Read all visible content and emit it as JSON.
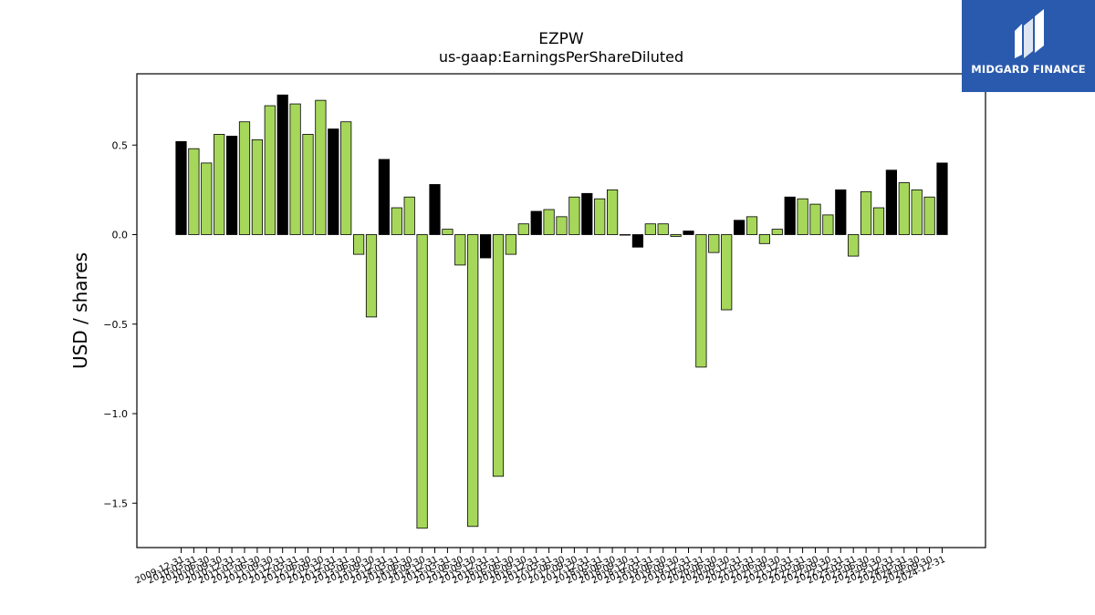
{
  "chart_data": {
    "type": "bar",
    "title": "EZPW",
    "subtitle": "us-gaap:EarningsPerShareDiluted",
    "xlabel": "",
    "ylabel": "USD / shares",
    "ylim": [
      -1.75,
      0.9
    ],
    "yticks": [
      0.5,
      0.0,
      -0.5,
      -1.0,
      -1.5
    ],
    "ytick_labels": [
      "0.5",
      "0.0",
      "−0.5",
      "−1.0",
      "−1.5"
    ],
    "grid": false,
    "colors": {
      "annual": "#000000",
      "quarterly": "#a6d75b",
      "edge": "#000000"
    },
    "categories": [
      "2009-12-31",
      "2010-03-31",
      "2010-06-30",
      "2010-09-30",
      "2010-12-31",
      "2011-03-31",
      "2011-06-30",
      "2011-09-30",
      "2011-12-31",
      "2012-03-31",
      "2012-06-30",
      "2012-09-30",
      "2012-12-31",
      "2013-03-31",
      "2013-06-30",
      "2013-09-30",
      "2013-12-31",
      "2014-03-31",
      "2014-06-30",
      "2014-09-30",
      "2014-12-31",
      "2015-03-31",
      "2015-06-30",
      "2015-09-30",
      "2015-12-31",
      "2016-03-31",
      "2016-06-30",
      "2016-09-30",
      "2016-12-31",
      "2017-03-31",
      "2017-06-30",
      "2017-09-30",
      "2017-12-31",
      "2018-03-31",
      "2018-06-30",
      "2018-09-30",
      "2018-12-31",
      "2019-03-31",
      "2019-06-30",
      "2019-09-30",
      "2019-12-31",
      "2020-03-31",
      "2020-06-30",
      "2020-09-30",
      "2020-12-31",
      "2021-03-31",
      "2021-06-30",
      "2021-09-30",
      "2021-12-31",
      "2022-03-31",
      "2022-06-30",
      "2022-09-30",
      "2022-12-31",
      "2023-03-31",
      "2023-06-30",
      "2023-09-30",
      "2023-12-31",
      "2024-03-31",
      "2024-06-30",
      "2024-09-30",
      "2024-12-31"
    ],
    "values": [
      0.52,
      0.48,
      0.4,
      0.56,
      0.55,
      0.63,
      0.53,
      0.72,
      0.78,
      0.73,
      0.56,
      0.75,
      0.59,
      0.63,
      -0.11,
      -0.46,
      0.42,
      0.15,
      0.21,
      -1.64,
      0.28,
      0.03,
      -0.17,
      -1.63,
      -0.13,
      -1.35,
      -0.11,
      0.06,
      0.13,
      0.14,
      0.1,
      0.21,
      0.23,
      0.2,
      0.25,
      0.0,
      -0.07,
      0.06,
      0.06,
      -0.01,
      0.02,
      -0.74,
      -0.1,
      -0.42,
      0.08,
      0.1,
      -0.05,
      0.03,
      0.21,
      0.2,
      0.17,
      0.11,
      0.25,
      -0.12,
      0.24,
      0.15,
      0.36,
      0.29,
      0.25,
      0.21,
      0.4
    ],
    "period": [
      "FY",
      "Q",
      "Q",
      "Q",
      "FY",
      "Q",
      "Q",
      "Q",
      "FY",
      "Q",
      "Q",
      "Q",
      "FY",
      "Q",
      "Q",
      "Q",
      "FY",
      "Q",
      "Q",
      "Q",
      "FY",
      "Q",
      "Q",
      "Q",
      "FY",
      "Q",
      "Q",
      "Q",
      "FY",
      "Q",
      "Q",
      "Q",
      "FY",
      "Q",
      "Q",
      "Q",
      "FY",
      "Q",
      "Q",
      "Q",
      "FY",
      "Q",
      "Q",
      "Q",
      "FY",
      "Q",
      "Q",
      "Q",
      "FY",
      "Q",
      "Q",
      "Q",
      "FY",
      "Q",
      "Q",
      "Q",
      "FY",
      "Q",
      "Q",
      "Q",
      "FY"
    ]
  },
  "logo": {
    "text": "MIDGARD FINANCE"
  }
}
